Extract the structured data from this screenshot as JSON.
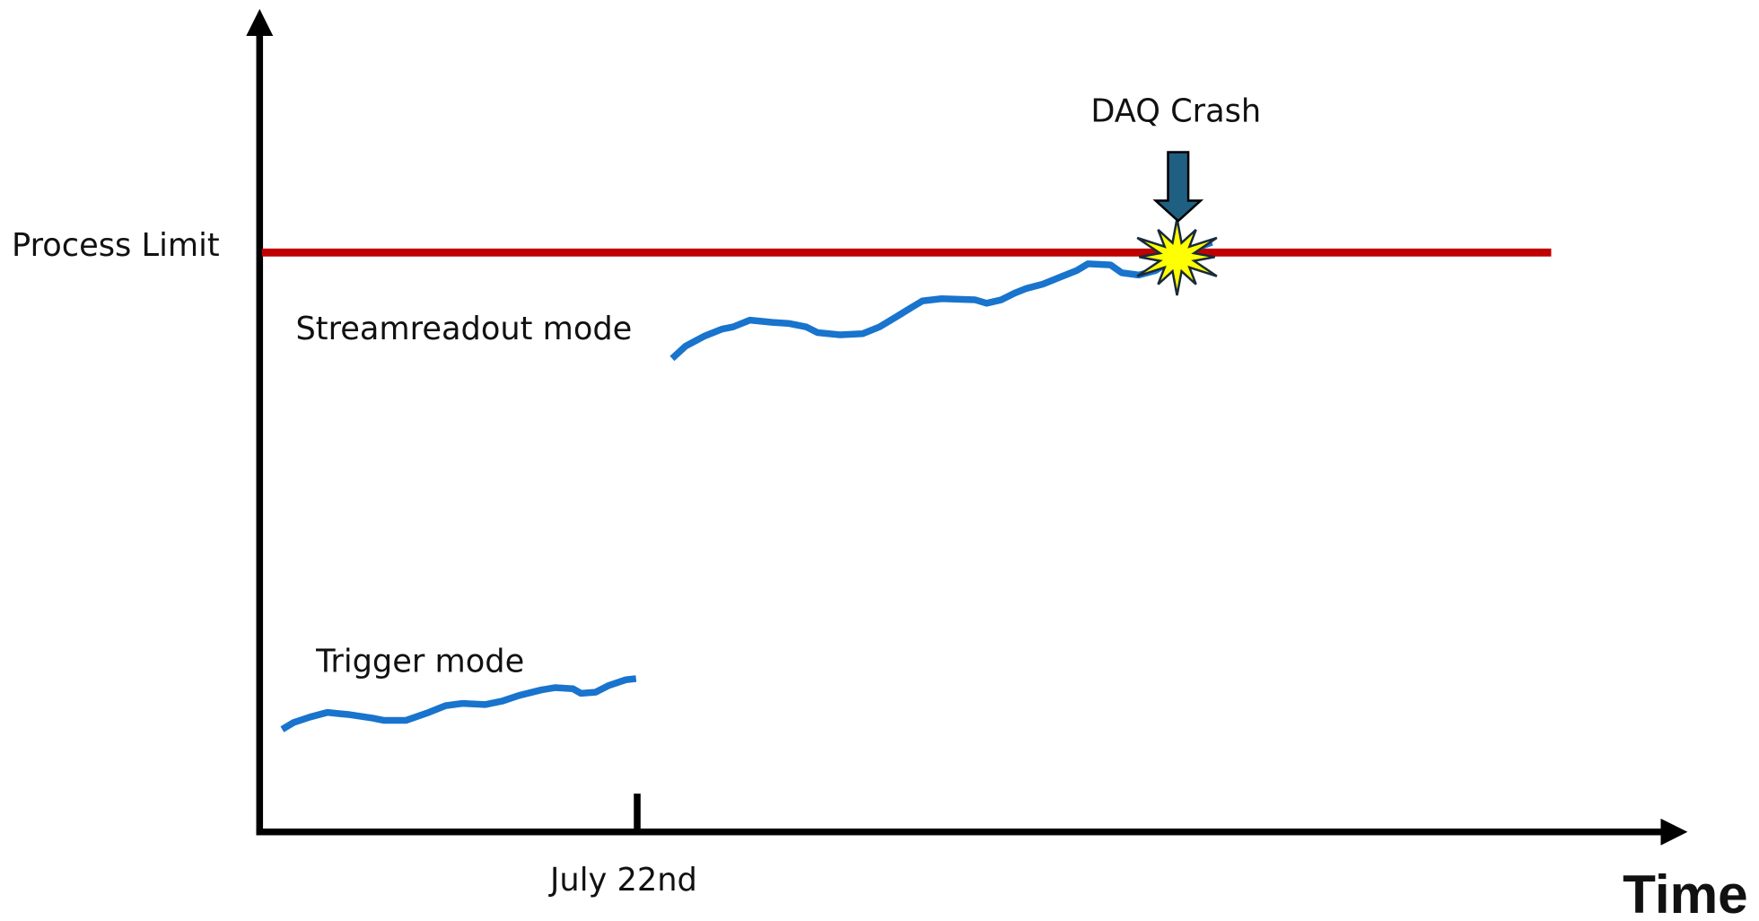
{
  "labels": {
    "process_limit": "Process Limit",
    "stream_mode": "Streamreadout mode",
    "trigger_mode": "Trigger mode",
    "crash": "DAQ Crash",
    "date": "July 22nd",
    "x_axis": "Time"
  }
}
